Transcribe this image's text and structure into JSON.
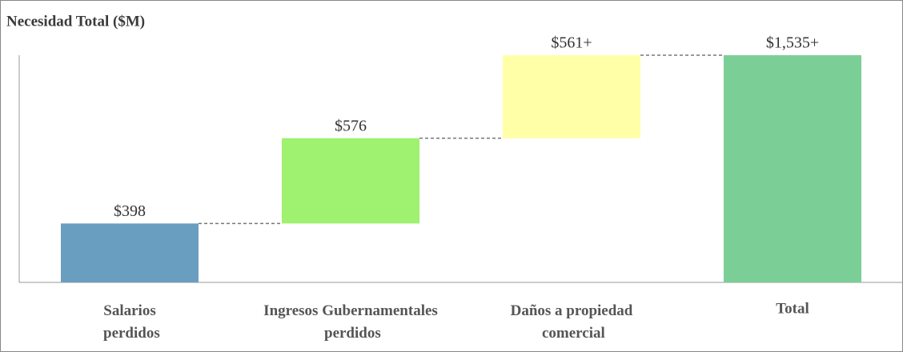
{
  "chart_data": {
    "type": "waterfall",
    "title": "Necesidad Total ($M)",
    "categories": [
      "Salarios perdidos",
      "Ingresos Gubernamentales perdidos",
      "Daños a propiedad comercial",
      "Total"
    ],
    "values": [
      398,
      576,
      561,
      1535
    ],
    "value_labels": [
      "$398",
      "$576",
      "$561+",
      "$1,535+"
    ],
    "measure": [
      "relative",
      "relative",
      "relative",
      "total"
    ],
    "colors": [
      "#6a9ec0",
      "#9ff170",
      "#ffffa8",
      "#7bcf96"
    ],
    "ylim": [
      0,
      1535
    ]
  }
}
